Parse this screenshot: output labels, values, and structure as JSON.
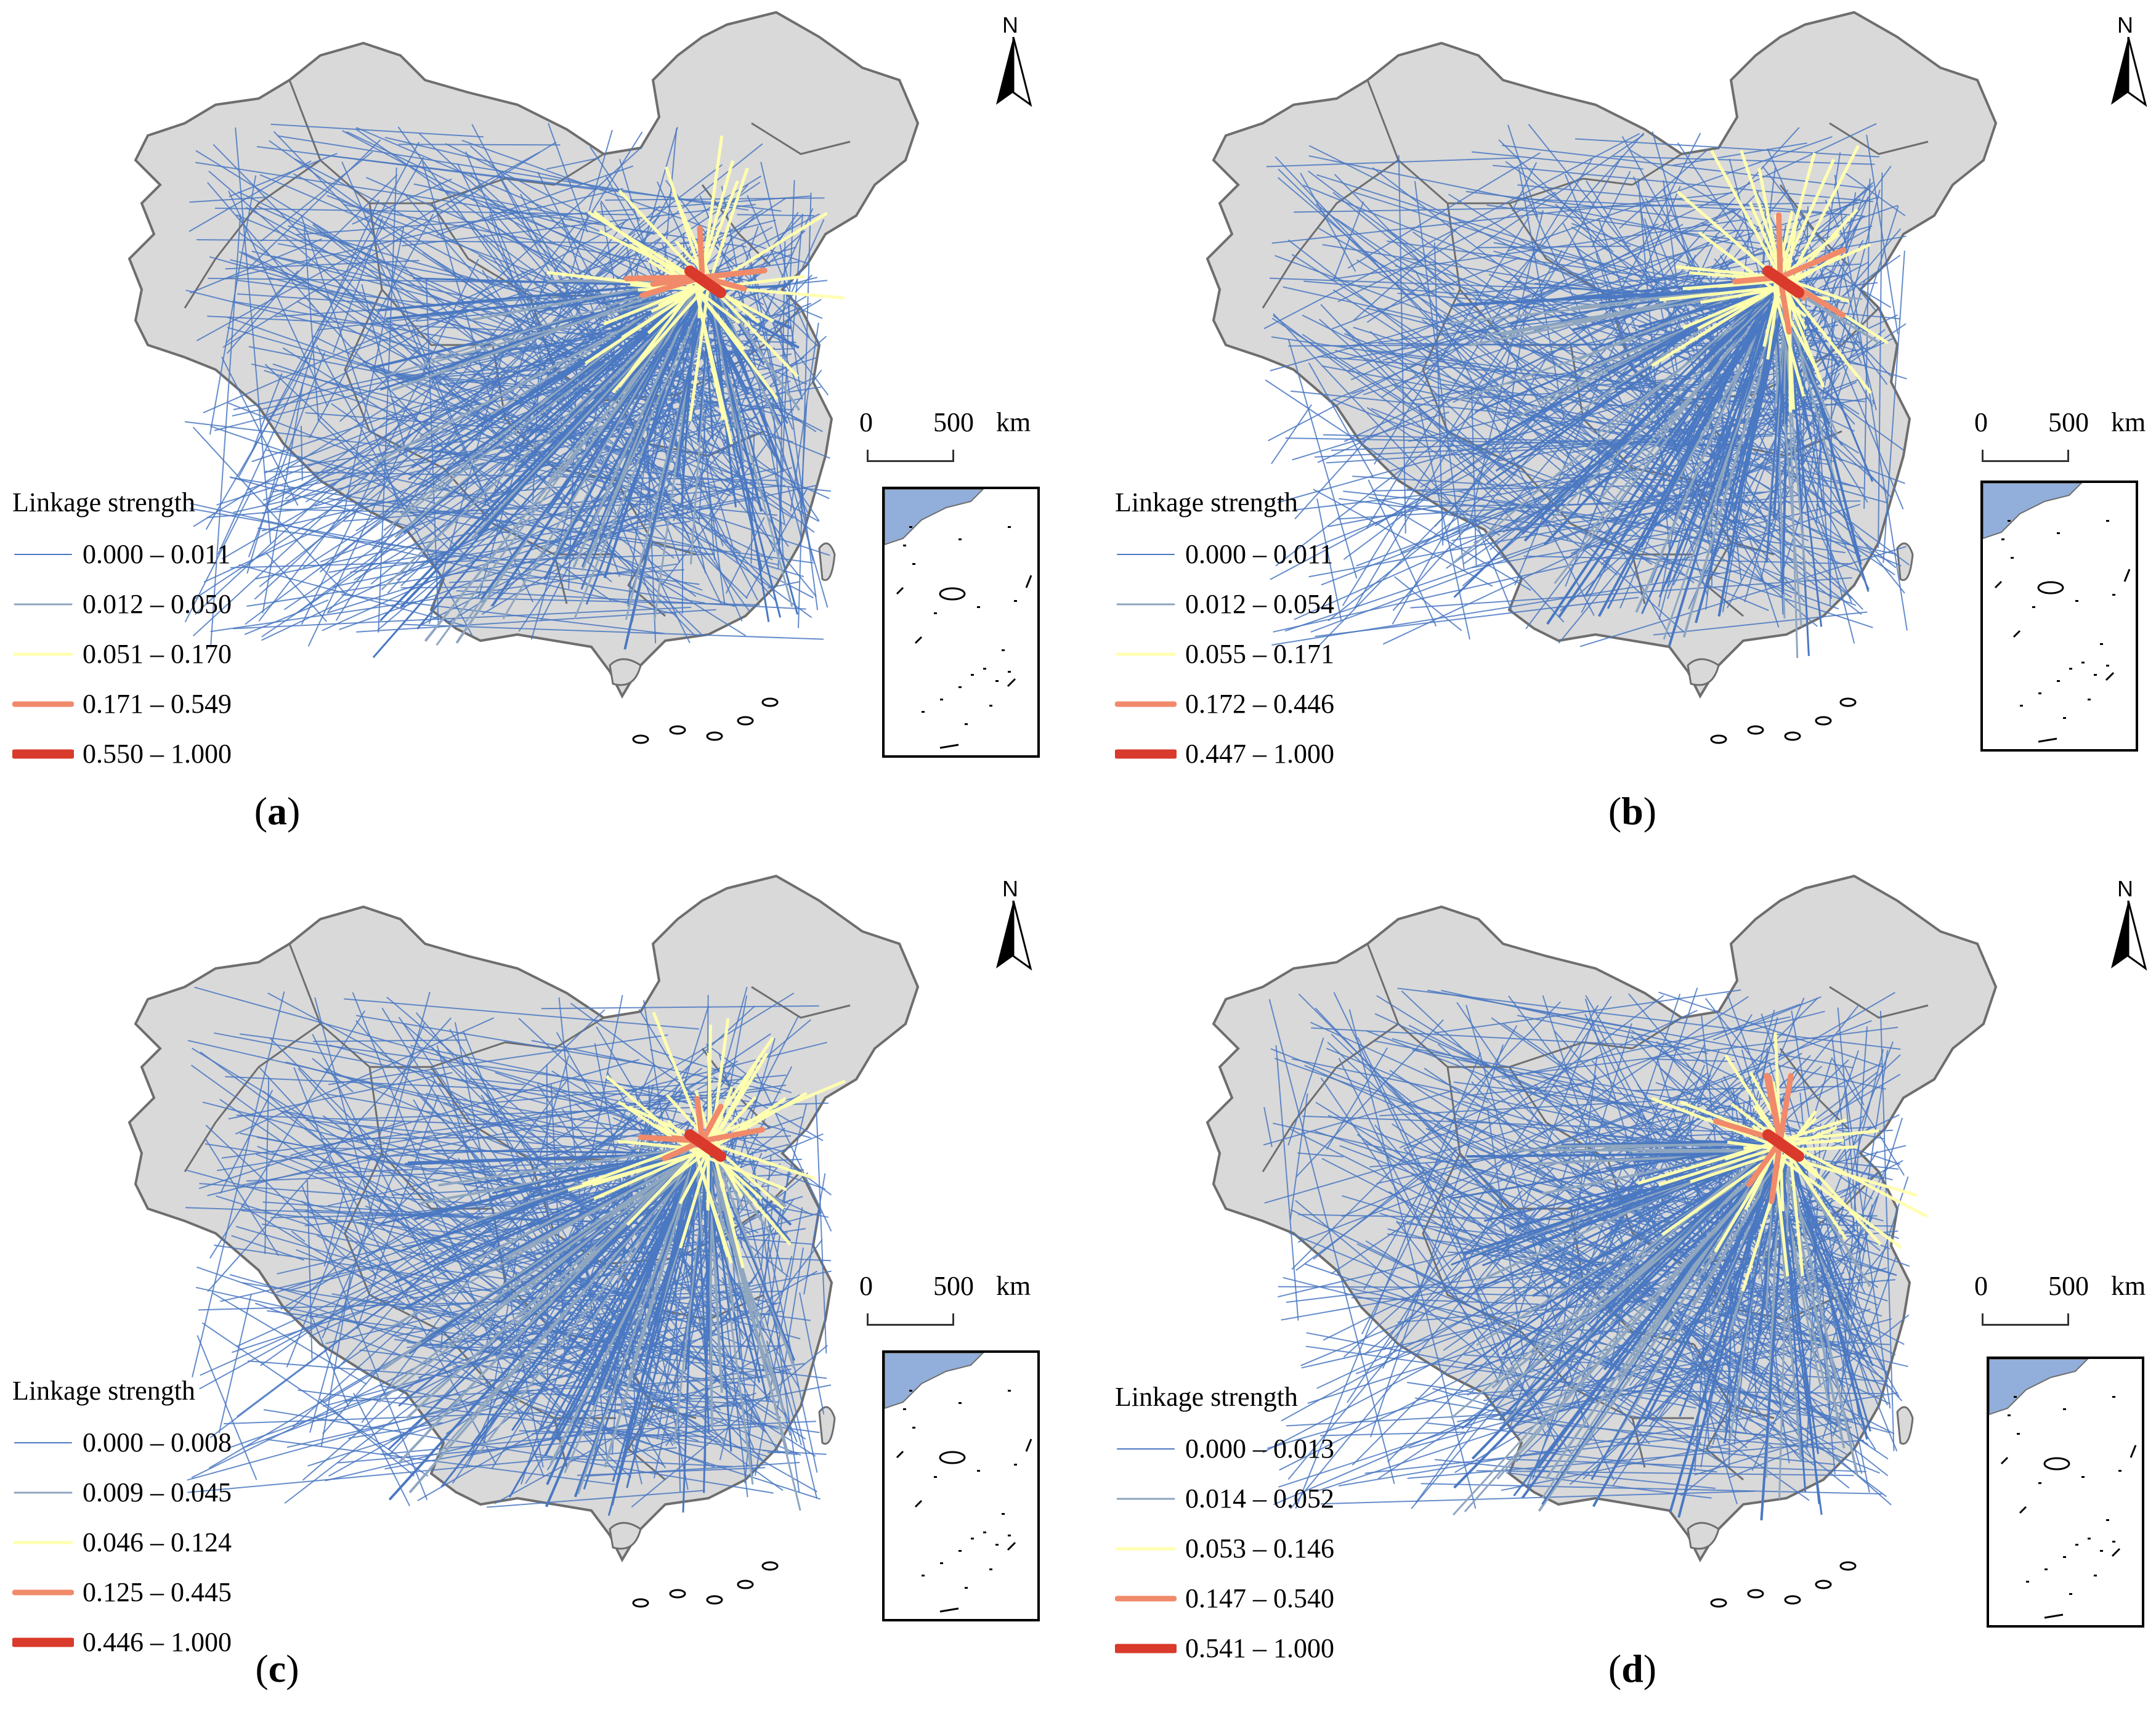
{
  "north_symbol": "north-arrow",
  "scale": {
    "zero": "0",
    "five_hundred": "500",
    "unit": "km"
  },
  "colors": {
    "land": "#d9d9d9",
    "border": "#6e6e6e",
    "class1": "#4a78c2",
    "class2": "#8fa6bf",
    "class3": "#ffffb0",
    "class4": "#f08a6a",
    "class5": "#d93a2b"
  },
  "panels": [
    {
      "letter": "a",
      "legend_title": "Linkage strength",
      "classes": [
        "0.000 – 0.011",
        "0.012 – 0.050",
        "0.051 – 0.170",
        "0.171 – 0.549",
        "0.550 – 1.000"
      ]
    },
    {
      "letter": "b",
      "legend_title": "Linkage strength",
      "classes": [
        "0.000 – 0.011",
        "0.012 – 0.054",
        "0.055 – 0.171",
        "0.172 – 0.446",
        "0.447 – 1.000"
      ]
    },
    {
      "letter": "c",
      "legend_title": "Linkage strength",
      "classes": [
        "0.000 – 0.008",
        "0.009 – 0.045",
        "0.046 – 0.124",
        "0.125 – 0.445",
        "0.446 – 1.000"
      ]
    },
    {
      "letter": "d",
      "legend_title": "Linkage strength",
      "classes": [
        "0.000 – 0.013",
        "0.014 – 0.052",
        "0.053 – 0.146",
        "0.147 – 0.540",
        "0.541 – 1.000"
      ]
    }
  ]
}
